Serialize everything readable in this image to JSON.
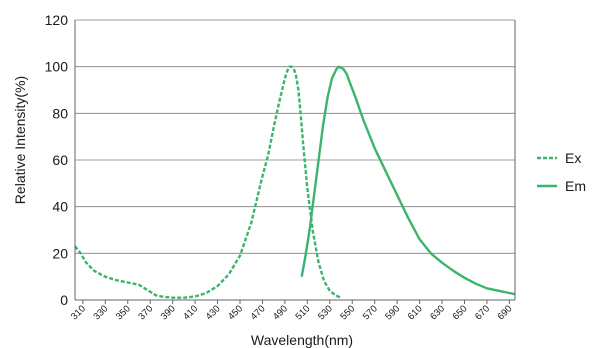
{
  "chart_data": {
    "type": "line",
    "xlabel": "Wavelength(nm)",
    "ylabel": "Relative Intensity(%)",
    "xlim": [
      303,
      695
    ],
    "ylim": [
      0,
      120
    ],
    "x_ticks": [
      "310",
      "330",
      "350",
      "370",
      "390",
      "410",
      "430",
      "450",
      "470",
      "490",
      "510",
      "530",
      "550",
      "570",
      "590",
      "610",
      "630",
      "650",
      "670",
      "690"
    ],
    "y_ticks": [
      "0",
      "20",
      "40",
      "60",
      "80",
      "100",
      "120"
    ],
    "grid": "horizontal",
    "legend": "right",
    "colors": {
      "line": "#3cb46e",
      "axis": "#666666",
      "grid": "#7f7f7f"
    },
    "series": [
      {
        "name": "Ex",
        "style": "dashed",
        "x": [
          303,
          308,
          313,
          320,
          330,
          340,
          350,
          360,
          365,
          370,
          375,
          380,
          390,
          400,
          410,
          420,
          430,
          440,
          450,
          460,
          465,
          470,
          475,
          480,
          485,
          488,
          490,
          492,
          494,
          496,
          498,
          500,
          502,
          504,
          506,
          510,
          515,
          520,
          525,
          530,
          535,
          540
        ],
        "y": [
          23,
          20,
          16,
          12.5,
          10,
          8.5,
          7.5,
          6.5,
          5,
          3.5,
          2,
          1.5,
          1,
          1,
          1.5,
          3,
          6,
          11,
          19,
          33,
          43,
          53,
          62,
          74,
          85,
          91,
          95,
          98,
          100,
          100,
          99,
          96,
          90,
          80,
          68,
          48,
          29,
          16,
          8,
          4,
          2,
          1
        ]
      },
      {
        "name": "Em",
        "style": "solid",
        "x": [
          505,
          508,
          512,
          516,
          520,
          524,
          528,
          532,
          536,
          538,
          540,
          542,
          545,
          548,
          552,
          560,
          570,
          580,
          590,
          600,
          610,
          620,
          630,
          640,
          650,
          660,
          670,
          680,
          690,
          695
        ],
        "y": [
          10,
          18,
          30,
          45,
          60,
          75,
          87,
          95,
          99,
          100,
          99.5,
          99,
          97,
          93,
          88,
          77,
          65,
          55,
          45,
          35,
          26,
          20,
          16,
          12.5,
          9.5,
          7,
          5,
          4,
          3,
          2.5
        ]
      }
    ]
  }
}
